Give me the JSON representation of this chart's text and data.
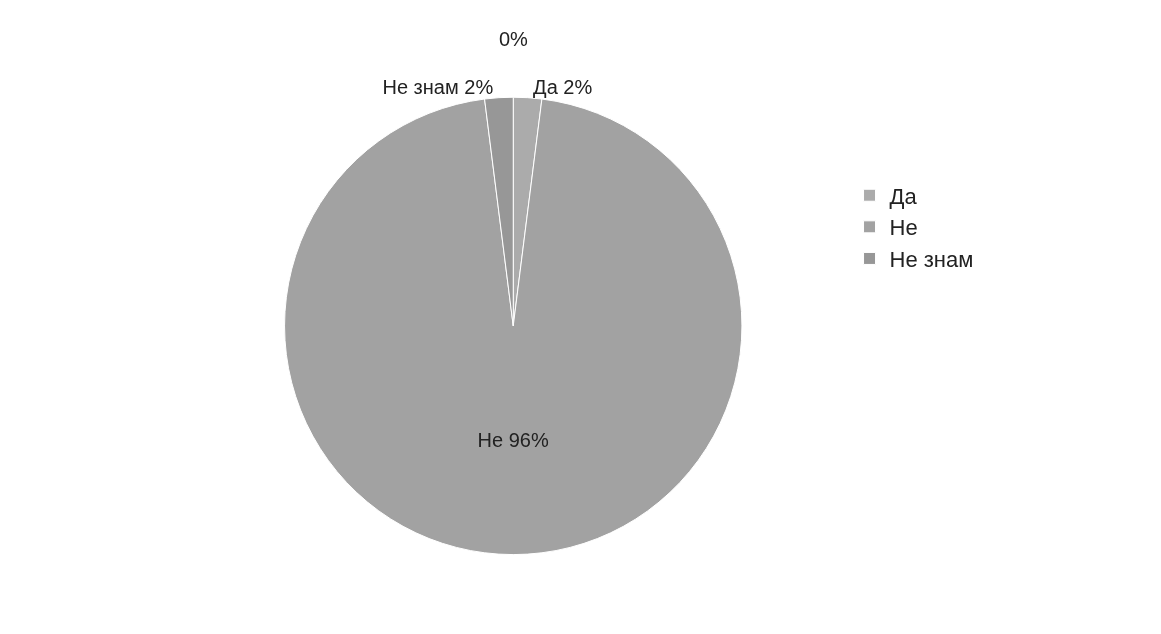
{
  "chart_data": {
    "type": "pie",
    "categories": [
      "Да",
      "Не",
      "Не знам"
    ],
    "values": [
      2,
      96,
      2
    ],
    "value_labels": [
      "Да 2%",
      "Не 96%",
      "Не знам 2%"
    ],
    "colors": [
      "#ababab",
      "#a2a2a2",
      "#979797"
    ],
    "legend": "right",
    "annotations": [
      "0%"
    ]
  }
}
